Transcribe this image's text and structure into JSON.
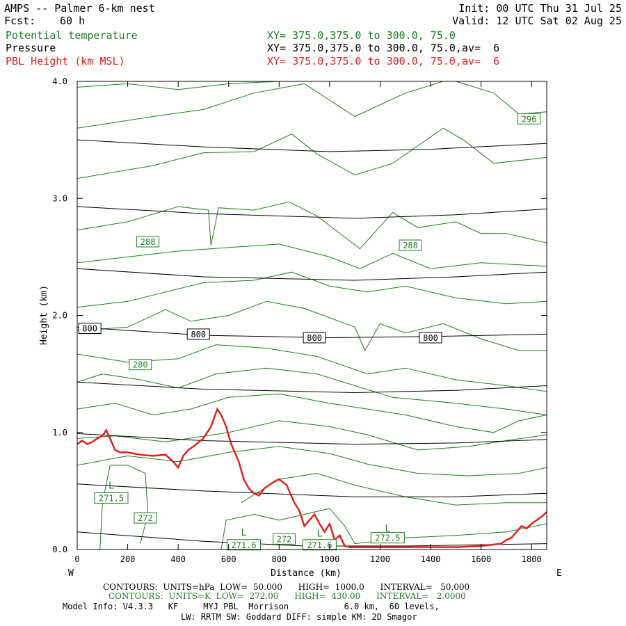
{
  "header": {
    "title": "AMPS -- Palmer 6-km nest",
    "init": "Init: 00 UTC Thu 31 Jul 25",
    "fcst_label": "Fcst:",
    "fcst_value": "60 h",
    "valid": "Valid: 12 UTC Sat 02 Aug 25",
    "fields": [
      {
        "name": "Potential temperature",
        "xy": "XY= 375.0,375.0 to 300.0, 75.0",
        "color": "#1e7a1e"
      },
      {
        "name": "Pressure",
        "xy": "XY= 375.0,375.0 to 300.0, 75.0,av=  6",
        "color": "#000000"
      },
      {
        "name": "PBL Height (km MSL)",
        "xy": "XY= 375.0,375.0 to 300.0, 75.0,av=  6",
        "color": "#e02020"
      }
    ]
  },
  "chart_data": {
    "type": "line",
    "xlabel": "Distance (km)",
    "ylabel": "Height (km)",
    "xlim": [
      0,
      1860
    ],
    "ylim": [
      0,
      4
    ],
    "x_ticks": [
      0,
      200,
      400,
      600,
      800,
      1000,
      1200,
      1400,
      1600,
      1800
    ],
    "y_ticks": [
      "0.0",
      "1.0",
      "2.0",
      "3.0",
      "4.0"
    ],
    "direction_left": "W",
    "direction_right": "E",
    "pressure_contours": [
      {
        "label": "800",
        "points": [
          [
            0,
            1.9
          ],
          [
            500,
            1.83
          ],
          [
            1000,
            1.81
          ],
          [
            1400,
            1.82
          ],
          [
            1860,
            1.84
          ]
        ]
      },
      {
        "name": "p",
        "points": [
          [
            0,
            3.5
          ],
          [
            500,
            3.44
          ],
          [
            1000,
            3.4
          ],
          [
            1400,
            3.42
          ],
          [
            1860,
            3.47
          ]
        ]
      },
      {
        "name": "p",
        "points": [
          [
            0,
            2.93
          ],
          [
            500,
            2.87
          ],
          [
            1100,
            2.83
          ],
          [
            1500,
            2.86
          ],
          [
            1860,
            2.91
          ]
        ]
      },
      {
        "name": "p",
        "points": [
          [
            0,
            2.4
          ],
          [
            500,
            2.33
          ],
          [
            1100,
            2.3
          ],
          [
            1500,
            2.33
          ],
          [
            1860,
            2.37
          ]
        ]
      },
      {
        "name": "p",
        "points": [
          [
            0,
            1.43
          ],
          [
            500,
            1.37
          ],
          [
            1100,
            1.34
          ],
          [
            1500,
            1.36
          ],
          [
            1860,
            1.4
          ]
        ]
      },
      {
        "name": "p",
        "points": [
          [
            0,
            0.99
          ],
          [
            500,
            0.93
          ],
          [
            1100,
            0.9
          ],
          [
            1500,
            0.91
          ],
          [
            1860,
            0.94
          ]
        ]
      },
      {
        "name": "p",
        "points": [
          [
            0,
            0.56
          ],
          [
            500,
            0.5
          ],
          [
            1100,
            0.45
          ],
          [
            1500,
            0.45
          ],
          [
            1860,
            0.48
          ]
        ]
      },
      {
        "name": "p",
        "points": [
          [
            0,
            0.15
          ],
          [
            500,
            0.07
          ],
          [
            900,
            0.03
          ],
          [
            1300,
            0.03
          ],
          [
            1860,
            0.05
          ]
        ]
      }
    ],
    "pressure_labels": [
      {
        "text": "800",
        "x": 50,
        "y": 1.89
      },
      {
        "text": "800",
        "x": 480,
        "y": 1.84
      },
      {
        "text": "800",
        "x": 940,
        "y": 1.81
      },
      {
        "text": "800",
        "x": 1400,
        "y": 1.81
      }
    ],
    "theta_contours": [
      [
        [
          0,
          3.95
        ],
        [
          200,
          3.98
        ],
        [
          400,
          3.93
        ],
        [
          600,
          3.98
        ],
        [
          800,
          4.0
        ]
      ],
      [
        [
          0,
          3.6
        ],
        [
          300,
          3.7
        ],
        [
          500,
          3.76
        ],
        [
          700,
          3.9
        ],
        [
          900,
          3.98
        ],
        [
          1100,
          3.7
        ],
        [
          1300,
          3.9
        ],
        [
          1450,
          4.0
        ]
      ],
      [
        [
          1500,
          4.0
        ],
        [
          1650,
          3.9
        ],
        [
          1750,
          3.72
        ],
        [
          1860,
          3.74
        ]
      ],
      [
        [
          0,
          3.17
        ],
        [
          300,
          3.28
        ],
        [
          500,
          3.39
        ],
        [
          700,
          3.4
        ],
        [
          850,
          3.55
        ],
        [
          950,
          3.38
        ],
        [
          1100,
          3.2
        ],
        [
          1250,
          3.3
        ],
        [
          1350,
          3.45
        ],
        [
          1450,
          3.6
        ],
        [
          1530,
          3.5
        ],
        [
          1650,
          3.3
        ],
        [
          1860,
          3.35
        ]
      ],
      [
        [
          0,
          2.73
        ],
        [
          200,
          2.8
        ],
        [
          400,
          2.93
        ],
        [
          520,
          2.9
        ],
        [
          530,
          2.6
        ],
        [
          560,
          2.92
        ],
        [
          700,
          2.9
        ],
        [
          840,
          2.97
        ],
        [
          950,
          2.85
        ],
        [
          1120,
          2.57
        ],
        [
          1250,
          2.88
        ],
        [
          1350,
          2.75
        ],
        [
          1500,
          2.8
        ],
        [
          1600,
          2.7
        ],
        [
          1700,
          2.7
        ],
        [
          1860,
          2.62
        ]
      ],
      [
        [
          0,
          2.45
        ],
        [
          200,
          2.5
        ],
        [
          400,
          2.55
        ],
        [
          600,
          2.58
        ],
        [
          800,
          2.61
        ],
        [
          1000,
          2.5
        ],
        [
          1120,
          2.4
        ],
        [
          1250,
          2.53
        ],
        [
          1400,
          2.4
        ],
        [
          1600,
          2.45
        ],
        [
          1860,
          2.42
        ]
      ],
      [
        [
          0,
          2.07
        ],
        [
          200,
          2.12
        ],
        [
          350,
          2.2
        ],
        [
          500,
          2.28
        ],
        [
          700,
          2.3
        ],
        [
          850,
          2.37
        ],
        [
          1000,
          2.25
        ],
        [
          1150,
          2.2
        ],
        [
          1300,
          2.25
        ],
        [
          1500,
          2.15
        ],
        [
          1700,
          2.1
        ],
        [
          1860,
          2.12
        ]
      ],
      [
        [
          0,
          1.87
        ],
        [
          200,
          1.9
        ],
        [
          350,
          2.05
        ],
        [
          450,
          1.95
        ],
        [
          600,
          2.0
        ],
        [
          750,
          2.12
        ],
        [
          900,
          2.06
        ],
        [
          1100,
          1.9
        ],
        [
          1140,
          1.7
        ],
        [
          1200,
          1.93
        ],
        [
          1300,
          1.85
        ],
        [
          1450,
          1.93
        ],
        [
          1600,
          1.8
        ],
        [
          1750,
          1.7
        ],
        [
          1860,
          1.7
        ]
      ],
      [
        [
          0,
          1.67
        ],
        [
          200,
          1.6
        ],
        [
          400,
          1.63
        ],
        [
          550,
          1.75
        ],
        [
          750,
          1.72
        ],
        [
          950,
          1.65
        ],
        [
          1150,
          1.5
        ],
        [
          1300,
          1.55
        ],
        [
          1500,
          1.45
        ],
        [
          1700,
          1.4
        ],
        [
          1860,
          1.35
        ]
      ],
      [
        [
          0,
          1.43
        ],
        [
          100,
          1.5
        ],
        [
          250,
          1.45
        ],
        [
          400,
          1.38
        ],
        [
          550,
          1.5
        ],
        [
          750,
          1.55
        ],
        [
          950,
          1.5
        ],
        [
          1100,
          1.4
        ],
        [
          1250,
          1.3
        ],
        [
          1500,
          1.25
        ],
        [
          1700,
          1.2
        ],
        [
          1860,
          1.15
        ]
      ],
      [
        [
          0,
          1.2
        ],
        [
          150,
          1.25
        ],
        [
          300,
          1.15
        ],
        [
          450,
          1.2
        ],
        [
          600,
          1.3
        ],
        [
          800,
          1.33
        ],
        [
          1000,
          1.25
        ],
        [
          1150,
          1.2
        ],
        [
          1300,
          1.15
        ],
        [
          1500,
          1.05
        ],
        [
          1650,
          1.0
        ],
        [
          1750,
          1.1
        ],
        [
          1860,
          1.15
        ]
      ],
      [
        [
          0,
          0.95
        ],
        [
          150,
          0.97
        ],
        [
          350,
          0.92
        ],
        [
          600,
          1.0
        ],
        [
          800,
          1.1
        ],
        [
          1000,
          1.05
        ],
        [
          1150,
          0.98
        ],
        [
          1350,
          0.85
        ],
        [
          1550,
          0.88
        ],
        [
          1700,
          0.93
        ],
        [
          1860,
          0.98
        ]
      ],
      [
        [
          0,
          0.72
        ],
        [
          200,
          0.8
        ],
        [
          400,
          0.75
        ],
        [
          600,
          0.83
        ],
        [
          800,
          0.88
        ],
        [
          1000,
          0.82
        ],
        [
          1150,
          0.73
        ],
        [
          1350,
          0.65
        ],
        [
          1550,
          0.63
        ],
        [
          1750,
          0.65
        ],
        [
          1860,
          0.7
        ]
      ],
      [
        [
          650,
          0.4
        ],
        [
          800,
          0.6
        ],
        [
          950,
          0.65
        ],
        [
          1100,
          0.55
        ],
        [
          1300,
          0.45
        ],
        [
          1500,
          0.38
        ],
        [
          1700,
          0.4
        ],
        [
          1860,
          0.4
        ]
      ],
      [
        [
          90,
          0.0
        ],
        [
          100,
          0.4
        ],
        [
          130,
          0.72
        ],
        [
          200,
          0.72
        ],
        [
          270,
          0.65
        ],
        [
          280,
          0.3
        ],
        [
          250,
          0.05
        ]
      ],
      [
        [
          570,
          0.0
        ],
        [
          590,
          0.25
        ],
        [
          700,
          0.3
        ],
        [
          800,
          0.25
        ],
        [
          900,
          0.3
        ],
        [
          1000,
          0.35
        ],
        [
          1060,
          0.2
        ],
        [
          1100,
          0.05
        ],
        [
          1300,
          0.1
        ],
        [
          1500,
          0.12
        ],
        [
          1700,
          0.15
        ],
        [
          1860,
          0.22
        ]
      ]
    ],
    "theta_labels": [
      {
        "text": "296",
        "x": 1790,
        "y": 3.68
      },
      {
        "text": "288",
        "x": 280,
        "y": 2.63
      },
      {
        "text": "288",
        "x": 1320,
        "y": 2.6
      },
      {
        "text": "280",
        "x": 250,
        "y": 1.58
      },
      {
        "text": "272",
        "x": 270,
        "y": 0.27
      },
      {
        "text": "272",
        "x": 820,
        "y": 0.09
      },
      {
        "text": "271.6",
        "x": 660,
        "y": 0.04
      },
      {
        "text": "271.6",
        "x": 960,
        "y": 0.04
      },
      {
        "text": "272.5",
        "x": 1230,
        "y": 0.1
      },
      {
        "text": "271.5",
        "x": 135,
        "y": 0.44
      }
    ],
    "low_markers": [
      {
        "text": "L",
        "x": 135,
        "y": 0.55
      },
      {
        "text": "L",
        "x": 660,
        "y": 0.15
      },
      {
        "text": "L",
        "x": 960,
        "y": 0.14
      },
      {
        "text": "L",
        "x": 1230,
        "y": 0.18
      }
    ],
    "series": [
      {
        "name": "PBL Height (km MSL)",
        "color": "#e02020",
        "x": [
          0,
          20,
          40,
          60,
          80,
          100,
          115,
          130,
          150,
          170,
          200,
          250,
          300,
          350,
          380,
          400,
          420,
          440,
          460,
          500,
          530,
          555,
          570,
          590,
          610,
          640,
          660,
          680,
          700,
          720,
          740,
          760,
          780,
          800,
          830,
          860,
          880,
          900,
          920,
          940,
          960,
          980,
          1000,
          1020,
          1040,
          1060,
          1080,
          1100,
          1200,
          1300,
          1400,
          1500,
          1600,
          1680,
          1700,
          1720,
          1740,
          1760,
          1780,
          1800,
          1820,
          1840,
          1860
        ],
        "y": [
          0.9,
          0.93,
          0.9,
          0.92,
          0.95,
          0.97,
          1.02,
          0.95,
          0.85,
          0.83,
          0.83,
          0.81,
          0.8,
          0.81,
          0.75,
          0.7,
          0.8,
          0.85,
          0.88,
          0.95,
          1.05,
          1.2,
          1.15,
          1.05,
          0.9,
          0.75,
          0.6,
          0.52,
          0.48,
          0.46,
          0.52,
          0.55,
          0.58,
          0.6,
          0.55,
          0.4,
          0.33,
          0.2,
          0.25,
          0.3,
          0.22,
          0.15,
          0.22,
          0.08,
          0.12,
          0.03,
          0.02,
          0.02,
          0.02,
          0.02,
          0.02,
          0.02,
          0.03,
          0.05,
          0.08,
          0.1,
          0.15,
          0.2,
          0.18,
          0.22,
          0.25,
          0.28,
          0.32
        ]
      }
    ]
  },
  "footer": {
    "contours_p": "CONTOURS:  UNITS=hPa  LOW=  50.000      HIGH=  1000.0      INTERVAL=   50.000",
    "contours_t": "CONTOURS:  UNITS=K  LOW=  272.00      HIGH=  430.00      INTERVAL=   2.0000",
    "model_info": "Model Info: V4.3.3   KF     MYJ PBL  Morrison           6.0 km,  60 levels,",
    "model_info2": "LW: RRTM SW: Goddard DIFF: simple KM: 2D Smagor"
  }
}
